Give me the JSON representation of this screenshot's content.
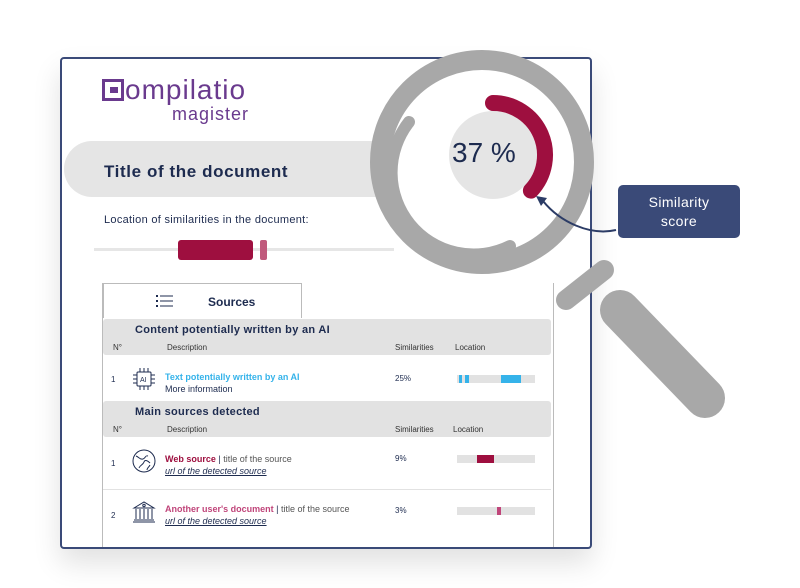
{
  "logo": {
    "main": "ompilatio",
    "sub": "magister"
  },
  "document": {
    "title": "Title of the document",
    "location_label": "Location of similarities in the document:"
  },
  "tab": {
    "label": "Sources",
    "icon": "list-icon"
  },
  "ai_section": {
    "title": "Content potentially written by an AI",
    "columns": {
      "num": "N°",
      "description": "Description",
      "similarities": "Similarities",
      "location": "Location"
    },
    "rows": [
      {
        "num": "1",
        "icon": "ai-chip-icon",
        "title": "Text potentially written by an AI",
        "subtitle": "More information",
        "similarity": "25%",
        "similarity_value": 25
      }
    ]
  },
  "main_section": {
    "title": "Main sources detected",
    "columns": {
      "num": "N°",
      "description": "Description",
      "similarities": "Similarities",
      "location": "Location"
    },
    "rows": [
      {
        "num": "1",
        "icon": "globe-icon",
        "title": "Web source",
        "separator": " | ",
        "detail": "title of the source",
        "url": "url of the detected source",
        "similarity": "9%",
        "similarity_value": 9
      },
      {
        "num": "2",
        "icon": "institution-icon",
        "title": "Another user's document",
        "separator": " | ",
        "detail": "title of the source",
        "url": "url of the detected source",
        "similarity": "3%",
        "similarity_value": 3
      }
    ]
  },
  "score": {
    "text": "37 %",
    "value": 37
  },
  "callout": {
    "line1": "Similarity",
    "line2": "score"
  },
  "colors": {
    "accent": "#9e0f3f",
    "ai": "#35b3ea",
    "navy": "#3a4a78",
    "brand": "#6a3a8e"
  }
}
